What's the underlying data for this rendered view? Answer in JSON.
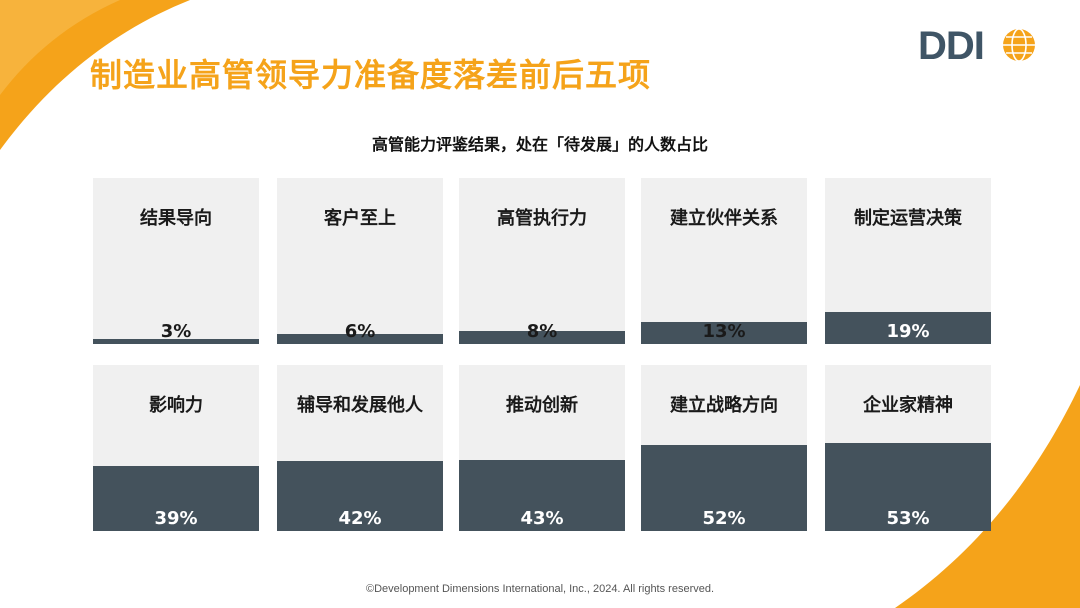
{
  "title": "制造业高管领导力准备度落差前后五项",
  "logo_text": "DDI",
  "colors": {
    "accent": "#f5a31a",
    "bar": "#44525c",
    "tile_bg": "#f0f0f0",
    "logo": "#3f5566"
  },
  "chart_data": {
    "type": "bar",
    "title": "高管能力评鉴结果，处在「待发展」的人数占比",
    "categories": [
      "结果导向",
      "客户至上",
      "高管执行力",
      "建立伙伴关系",
      "制定运营决策",
      "影响力",
      "辅导和发展他人",
      "推动创新",
      "建立战略方向",
      "企业家精神"
    ],
    "values": [
      3,
      6,
      8,
      13,
      19,
      39,
      42,
      43,
      52,
      53
    ],
    "value_labels": [
      "3%",
      "6%",
      "8%",
      "13%",
      "19%",
      "39%",
      "42%",
      "43%",
      "52%",
      "53%"
    ],
    "ylim": [
      0,
      100
    ]
  },
  "footer": "©Development Dimensions International, Inc., 2024. All rights reserved."
}
